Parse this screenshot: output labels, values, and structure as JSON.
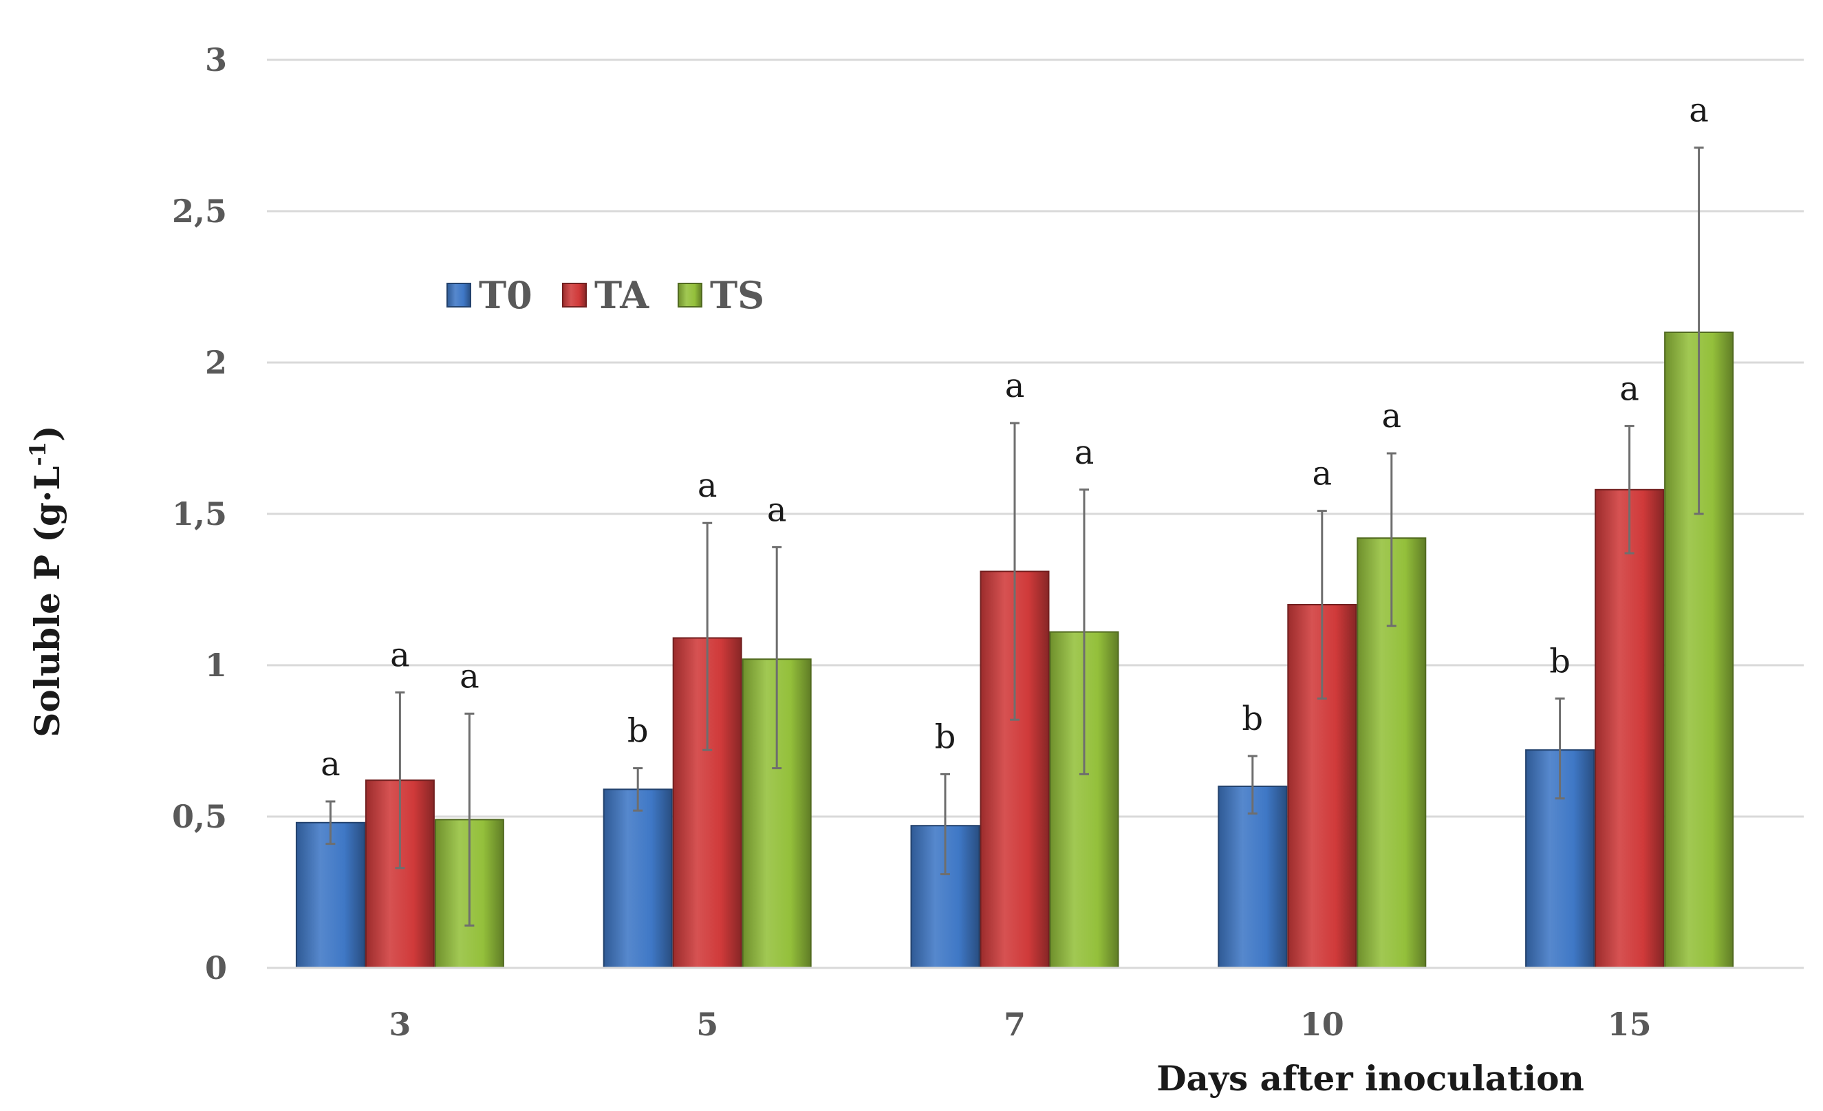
{
  "chart_data": {
    "type": "bar",
    "title": "",
    "xlabel": "Days after inoculation",
    "ylabel": "Soluble P (g·L",
    "ylabel_sup": "-1",
    "ylabel_suffix": ")",
    "ylim": [
      0,
      3
    ],
    "yticks": [
      0,
      0.5,
      1,
      1.5,
      2,
      2.5,
      3
    ],
    "ytick_labels": [
      "0",
      "0,5",
      "1",
      "1,5",
      "2",
      "2,5",
      "3"
    ],
    "grid": true,
    "legend_position": "upper-left",
    "categories": [
      "3",
      "5",
      "7",
      "10",
      "15"
    ],
    "series": [
      {
        "name": "T0",
        "color": "#3f78c6",
        "values": [
          0.48,
          0.59,
          0.47,
          0.6,
          0.72
        ],
        "err_low": [
          0.41,
          0.52,
          0.31,
          0.51,
          0.56
        ],
        "err_high": [
          0.55,
          0.66,
          0.64,
          0.7,
          0.89
        ],
        "sig": [
          "a",
          "b",
          "b",
          "b",
          "b"
        ]
      },
      {
        "name": "TA",
        "color": "#d03a3a",
        "values": [
          0.62,
          1.09,
          1.31,
          1.2,
          1.58
        ],
        "err_low": [
          0.33,
          0.72,
          0.82,
          0.89,
          1.37
        ],
        "err_high": [
          0.91,
          1.47,
          1.8,
          1.51,
          1.79
        ],
        "sig": [
          "a",
          "a",
          "a",
          "a",
          "a"
        ]
      },
      {
        "name": "TS",
        "color": "#94c03b",
        "values": [
          0.49,
          1.02,
          1.11,
          1.42,
          2.1
        ],
        "err_low": [
          0.14,
          0.66,
          0.64,
          1.13,
          1.5
        ],
        "err_high": [
          0.84,
          1.39,
          1.58,
          1.7,
          2.71
        ],
        "sig": [
          "a",
          "a",
          "a",
          "a",
          "a"
        ]
      }
    ]
  }
}
